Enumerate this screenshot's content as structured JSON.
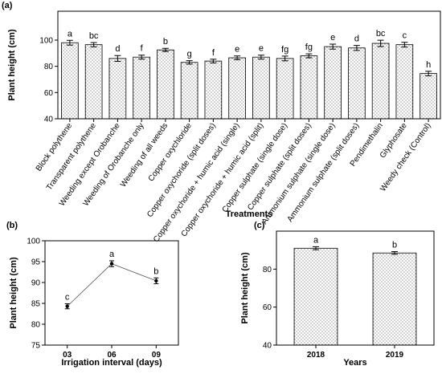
{
  "chart_data": [
    {
      "type": "bar",
      "panel_label": "(a)",
      "x_label": "Treatments",
      "y_label": "Plant height (cm)",
      "categories": [
        "Block polythene",
        "Transparent polythene",
        "Weeding except Orobanche",
        "Weeding of Orobanche only",
        "Weeding of all weeds",
        "Copper oxychloride",
        "Copper oxychoride (split doses)",
        "Copper oxychoride + humic acid (single)",
        "Copper oxychoride + humic acid (split)",
        "Copper sulphate (single dose)",
        "Copper sulphate (split doses)",
        "Ammonium sulphate (single dose)",
        "Ammonium sulphate (split doses)",
        "Pendimethalin",
        "Glyphosate",
        "Weedy check (Control)"
      ],
      "values": [
        98,
        96.5,
        86,
        87,
        92.5,
        83,
        84,
        86.5,
        87,
        86,
        88,
        95,
        94,
        97.5,
        96.5,
        74.5
      ],
      "errors": [
        1.8,
        1.6,
        2.2,
        1.5,
        1.2,
        1.3,
        1.4,
        1.4,
        1.5,
        1.8,
        1.5,
        1.9,
        1.9,
        2.4,
        1.8,
        1.7
      ],
      "letters": [
        "a",
        "bc",
        "d",
        "f",
        "b",
        "g",
        "f",
        "e",
        "e",
        "fg",
        "fg",
        "e",
        "d",
        "bc",
        "c",
        "h"
      ],
      "ylim": [
        40,
        122
      ],
      "yticks": [
        40,
        60,
        80,
        100
      ]
    },
    {
      "type": "line",
      "panel_label": "(b)",
      "x_label": "Irrigation interval (days)",
      "y_label": "Plant height (cm)",
      "categories": [
        "03",
        "06",
        "09"
      ],
      "values": [
        84.3,
        94.5,
        90.4
      ],
      "errors": [
        0.6,
        0.7,
        0.7
      ],
      "letters": [
        "c",
        "a",
        "b"
      ],
      "ylim": [
        75,
        100
      ],
      "yticks": [
        75,
        80,
        85,
        90,
        95,
        100
      ]
    },
    {
      "type": "bar",
      "panel_label": "(c)",
      "x_label": "Years",
      "y_label": "Plant height (cm)",
      "categories": [
        "2018",
        "2019"
      ],
      "values": [
        91,
        88.5
      ],
      "errors": [
        0.8,
        0.7
      ],
      "letters": [
        "a",
        "b"
      ],
      "ylim": [
        40,
        100
      ],
      "yticks": [
        40,
        60,
        80
      ]
    }
  ]
}
